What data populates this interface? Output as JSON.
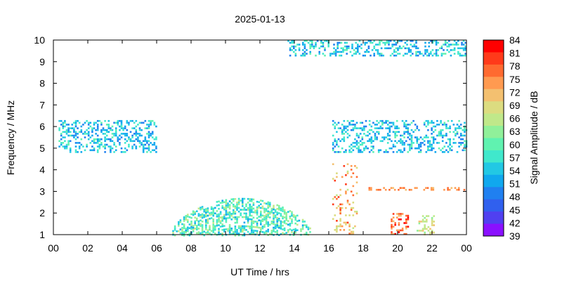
{
  "chart_data": {
    "type": "heatmap",
    "title": "2025-01-13",
    "xlabel": "UT Time / hrs",
    "ylabel": "Frequency / MHz",
    "colorbar_label": "Signal Amplitude / dB",
    "x_ticks": [
      "00",
      "02",
      "04",
      "06",
      "08",
      "10",
      "12",
      "14",
      "16",
      "18",
      "20",
      "22",
      "00"
    ],
    "x_range_hours": [
      0,
      24
    ],
    "y_ticks": [
      1,
      2,
      3,
      4,
      5,
      6,
      7,
      8,
      9,
      10
    ],
    "y_range_mhz": [
      1,
      10
    ],
    "colorbar_ticks": [
      84,
      81,
      78,
      75,
      72,
      69,
      66,
      63,
      60,
      57,
      54,
      51,
      48,
      45,
      42,
      39
    ],
    "colorbar_range_db": [
      39,
      84
    ],
    "colorbar_colors": [
      "#ff0000",
      "#ff3a1a",
      "#ff6a30",
      "#ff9a50",
      "#f3c070",
      "#dcdc80",
      "#c0e88a",
      "#90f09a",
      "#60f2b0",
      "#40e8cc",
      "#22c8e4",
      "#10a8ee",
      "#2080f0",
      "#3060ee",
      "#5040f0",
      "#8a10ff"
    ],
    "features": [
      {
        "name": "Daytime arc",
        "time_start_hours": 6.8,
        "time_end_hours": 15.0,
        "freq_low_mhz": 1.0,
        "freq_peak_mhz": 2.7,
        "amplitude_db": [
          52,
          66
        ]
      },
      {
        "name": "Burst near 16:50",
        "time_start_hours": 16.2,
        "time_end_hours": 17.6,
        "freq_low_mhz": 1.0,
        "freq_high_mhz": 4.3,
        "amplitude_db": [
          66,
          81
        ]
      },
      {
        "name": "Burst near 20:10",
        "time_start_hours": 19.6,
        "time_end_hours": 20.6,
        "freq_low_mhz": 1.0,
        "freq_high_mhz": 2.0,
        "amplitude_db": [
          70,
          84
        ]
      },
      {
        "name": "Burst near 21:30",
        "time_start_hours": 21.1,
        "time_end_hours": 22.1,
        "freq_low_mhz": 1.0,
        "freq_high_mhz": 1.9,
        "amplitude_db": [
          63,
          72
        ]
      },
      {
        "name": "Night band 5-6 MHz (early)",
        "time_start_hours": 0.3,
        "time_end_hours": 6.0,
        "freq_low_mhz": 4.8,
        "freq_high_mhz": 6.3,
        "amplitude_db": [
          48,
          60
        ]
      },
      {
        "name": "Night band 5-6 MHz (late)",
        "time_start_hours": 16.2,
        "time_end_hours": 24.0,
        "freq_low_mhz": 4.8,
        "freq_high_mhz": 6.3,
        "amplitude_db": [
          48,
          60
        ]
      },
      {
        "name": "Top band 9-10 MHz",
        "time_start_hours": 13.6,
        "time_end_hours": 24.0,
        "freq_low_mhz": 9.3,
        "freq_high_mhz": 10.0,
        "amplitude_db": [
          48,
          60
        ]
      },
      {
        "name": "Line near 3.1 MHz",
        "time_start_hours": 18.2,
        "time_end_hours": 24.0,
        "freq_low_mhz": 3.1,
        "freq_high_mhz": 3.2,
        "amplitude_db": [
          72,
          78
        ]
      }
    ]
  }
}
